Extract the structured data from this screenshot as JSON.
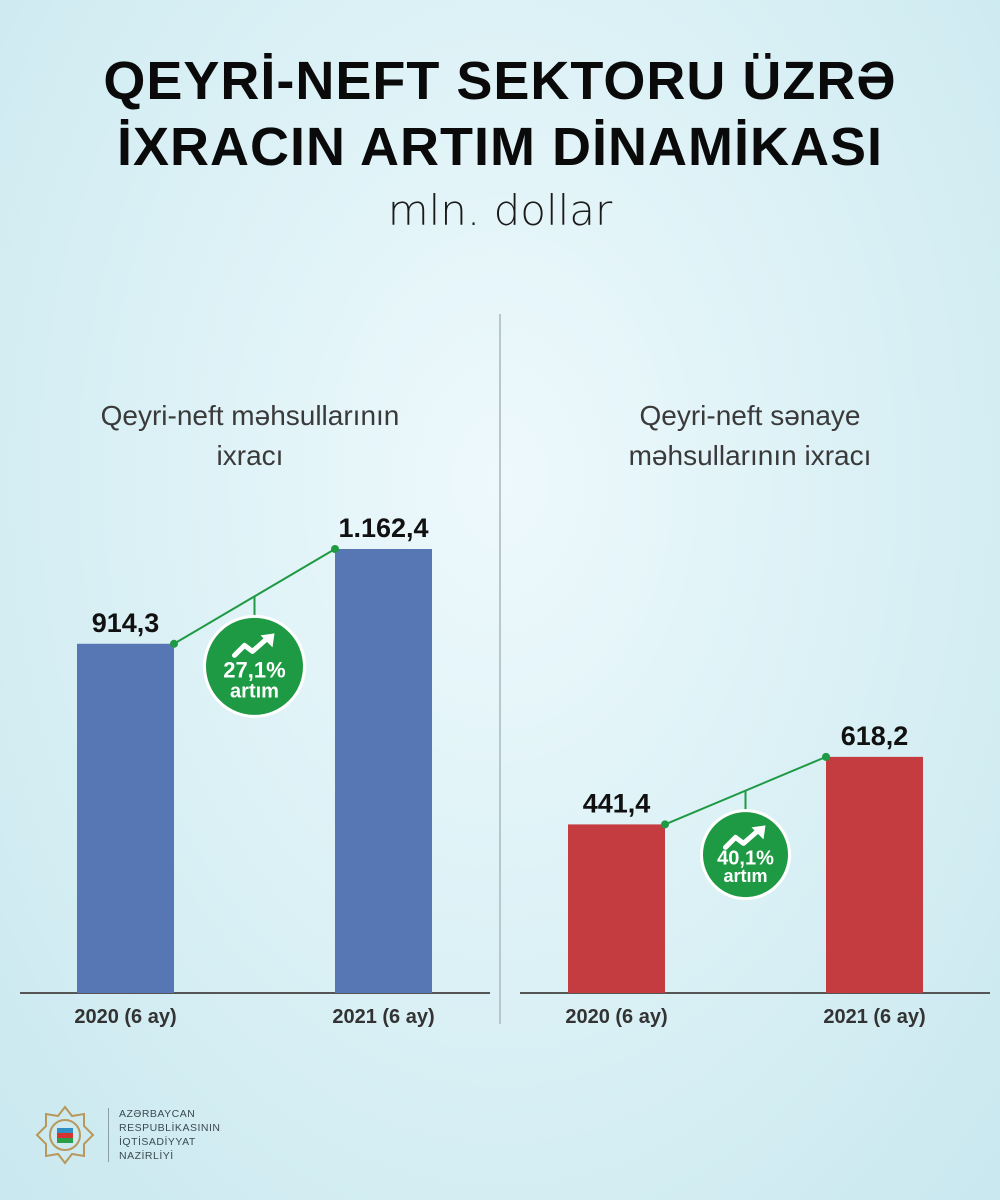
{
  "header": {
    "title_line1": "QEYRİ-NEFT SEKTORU ÜZRƏ",
    "title_line2": "İXRACIN ARTIM DİNAMİKASI",
    "unit": "mln. dollar"
  },
  "colors": {
    "blue_bar": "#5677b4",
    "red_bar": "#c43c40",
    "growth_green": "#1f9a44",
    "axis": "#555555"
  },
  "chart_data": [
    {
      "type": "bar",
      "title_line1": "Qeyri-neft məhsullarının",
      "title_line2": "ixracı",
      "categories": [
        "2020 (6 ay)",
        "2021 (6 ay)"
      ],
      "values": [
        914.3,
        1162.4
      ],
      "value_labels": [
        "914,3",
        "1.162,4"
      ],
      "growth_value": "27,1%",
      "growth_word": "artım",
      "color": "#5677b4",
      "growth_icon": "trend-up-icon"
    },
    {
      "type": "bar",
      "title_line1": "Qeyri-neft sənaye",
      "title_line2": "məhsullarının ixracı",
      "categories": [
        "2020 (6 ay)",
        "2021 (6 ay)"
      ],
      "values": [
        441.4,
        618.2
      ],
      "value_labels": [
        "441,4",
        "618,2"
      ],
      "growth_value": "40,1%",
      "growth_word": "artım",
      "color": "#c43c40",
      "growth_icon": "trend-up-icon"
    }
  ],
  "footer": {
    "emblem_icon": "ministry-emblem-icon",
    "org_line1": "AZƏRBAYCAN",
    "org_line2": "RESPUBLİKASININ",
    "org_line3": "İQTİSADİYYAT",
    "org_line4": "NAZİRLİYİ"
  }
}
